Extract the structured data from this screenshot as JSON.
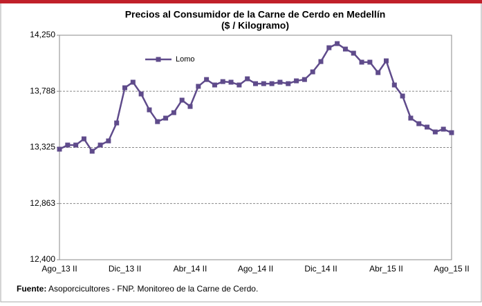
{
  "chart_data": {
    "type": "line",
    "title": "Precios al Consumidor de la Carne de Cerdo en Medellín",
    "subtitle": "($ / Kilogramo)",
    "categories": [
      "Ago_13 II",
      null,
      null,
      null,
      null,
      null,
      null,
      null,
      "Dic_13 II",
      null,
      null,
      null,
      null,
      null,
      null,
      null,
      "Abr_14 II",
      null,
      null,
      null,
      null,
      null,
      null,
      null,
      "Ago_14 II",
      null,
      null,
      null,
      null,
      null,
      null,
      null,
      "Dic_14 II",
      null,
      null,
      null,
      null,
      null,
      null,
      null,
      "Abr_15 II",
      null,
      null,
      null,
      null,
      null,
      null,
      null,
      "Ago_15 II"
    ],
    "series": [
      {
        "name": "Lomo",
        "color": "#5f4b8b",
        "values": [
          13311,
          13345,
          13345,
          13396,
          13294,
          13345,
          13379,
          13527,
          13817,
          13863,
          13766,
          13635,
          13538,
          13567,
          13612,
          13715,
          13663,
          13829,
          13885,
          13840,
          13868,
          13863,
          13840,
          13891,
          13851,
          13851,
          13851,
          13863,
          13851,
          13874,
          13885,
          13948,
          14033,
          14147,
          14181,
          14136,
          14102,
          14028,
          14028,
          13942,
          14039,
          13840,
          13749,
          13567,
          13521,
          13493,
          13453,
          13476,
          13447
        ]
      }
    ],
    "ylim": [
      12400,
      14250
    ],
    "yticks": [
      {
        "value": 12400,
        "label": "12,400"
      },
      {
        "value": 12863,
        "label": "12,863"
      },
      {
        "value": 13325,
        "label": "13,325"
      },
      {
        "value": 13788,
        "label": "13,788"
      },
      {
        "value": 14250,
        "label": "14,250"
      }
    ],
    "grid": true,
    "legend": "upper left",
    "source_label": "Fuente:",
    "source": "Asoporcicultores - FNP.  Monitoreo de la Carne de Cerdo."
  }
}
